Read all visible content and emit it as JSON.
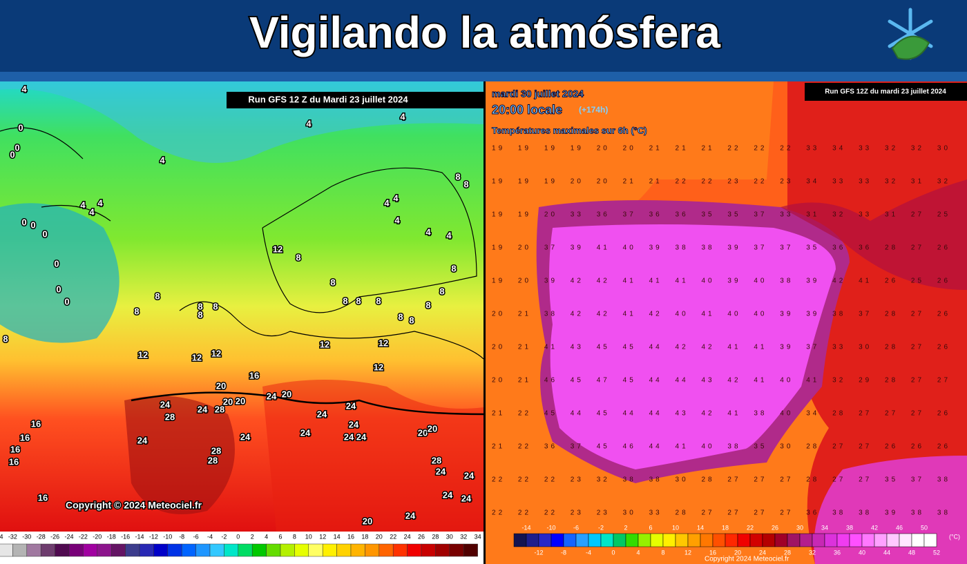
{
  "header": {
    "title": "Vigilando la atmósfera"
  },
  "left_map": {
    "run_label": "Run GFS 12 Z du Mardi 23 juillet 2024",
    "copyright": "Copyright © 2024 Meteociel.fr",
    "contour_labels": [
      "4",
      "0",
      "0",
      "0",
      "4",
      "4",
      "4",
      "8",
      "8",
      "4",
      "4",
      "4",
      "4",
      "4",
      "4",
      "4",
      "4",
      "0",
      "0",
      "0",
      "0",
      "0",
      "0",
      "12",
      "8",
      "8",
      "8",
      "8",
      "8",
      "8",
      "8",
      "8",
      "8",
      "8",
      "8",
      "8",
      "8",
      "8",
      "8",
      "8",
      "12",
      "12",
      "12",
      "12",
      "12",
      "12",
      "16",
      "20",
      "20",
      "20",
      "24",
      "20",
      "24",
      "28",
      "24",
      "28",
      "24",
      "24",
      "24",
      "24",
      "24",
      "24",
      "24",
      "20",
      "20",
      "24",
      "28",
      "28",
      "28",
      "24",
      "24",
      "24",
      "24",
      "16",
      "16",
      "16",
      "16",
      "16",
      "24",
      "20"
    ],
    "scale_labels": [
      "-34",
      "-32",
      "-30",
      "-28",
      "-26",
      "-24",
      "-22",
      "-20",
      "-18",
      "-16",
      "-14",
      "-12",
      "-10",
      "-8",
      "-6",
      "-4",
      "-2",
      "0",
      "2",
      "4",
      "6",
      "8",
      "10",
      "12",
      "14",
      "16",
      "18",
      "20",
      "22",
      "24",
      "26",
      "28",
      "30",
      "32",
      "34"
    ]
  },
  "right_map": {
    "date": "mardi 30 juillet 2024",
    "time": "20:00 locale",
    "lead": "(+174h)",
    "field": "Températures maximales sur 6h (°C)",
    "run_label": "Run GFS 12Z du mardi 23 juillet 2024",
    "copyright": "Copyright 2024 Meteociel.fr",
    "grid_rows": [
      "19 19 19 19 20 20 21 21 21 22 22 22 33 34 33 32 32 30",
      "19 19 19 20 20 21 21 22 22 23 22 23 34 33 33 32 31 32",
      "19 19 20 33 36 37 36 36 35 35 37 33 31 32 33 31 27 25",
      "19 20 37 39 41 40 39 38 38 39 37 37 35 36 36 28 27 26",
      "19 20 39 42 42 41 41 41 40 39 40 38 39 42 41 26 25 26",
      "20 21 38 42 42 41 42 40 41 40 40 39 39 38 37 28 27 26",
      "20 21 41 43 45 45 44 42 42 41 41 39 37 33 30 28 27 26",
      "20 21 46 45 47 45 44 44 43 42 41 40 41 32 29 28 27 27",
      "21 22 45 44 45 44 44 43 42 41 38 40 34 28 27 27 27 26",
      "21 22 36 37 45 46 44 41 40 38 35 30 28 27 27 26 26 26",
      "22 22 22 23 32 38 38 30 28 27 27 27 28 27 27 35 37 38",
      "22 22 22 23 23 30 33 28 27 27 27 27 36 38 38 39 38 38"
    ],
    "scale_labels_top": [
      "-14",
      "-10",
      "-6",
      "-2",
      "2",
      "6",
      "10",
      "14",
      "18",
      "22",
      "26",
      "30",
      "34",
      "38",
      "42",
      "46",
      "50"
    ],
    "scale_labels_bottom": [
      "-12",
      "-8",
      "-4",
      "0",
      "4",
      "8",
      "12",
      "16",
      "20",
      "24",
      "28",
      "32",
      "36",
      "40",
      "44",
      "48",
      "52"
    ],
    "scale_unit": "(°C)"
  }
}
